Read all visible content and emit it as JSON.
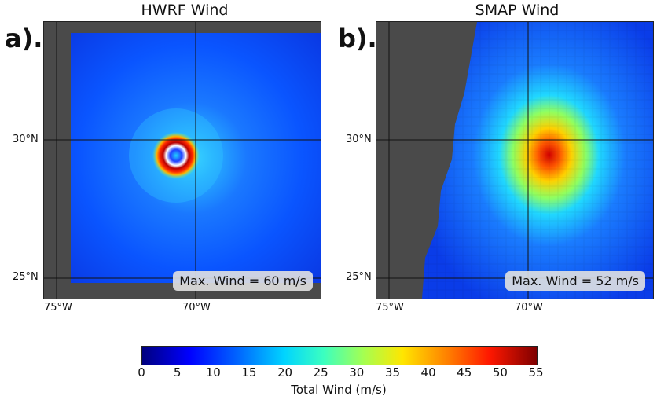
{
  "panels": [
    {
      "letter": "a).",
      "title": "HWRF Wind",
      "max_wind": "Max. Wind = 60 m/s",
      "lat_ticks": [
        "30°N",
        "25°N"
      ],
      "lon_ticks": [
        "75°W",
        "70°W"
      ]
    },
    {
      "letter": "b).",
      "title": "SMAP Wind",
      "max_wind": "Max. Wind = 52 m/s",
      "lat_ticks": [
        "30°N",
        "25°N"
      ],
      "lon_ticks": [
        "75°W",
        "70°W"
      ]
    }
  ],
  "colorbar": {
    "label": "Total Wind (m/s)",
    "ticks": [
      "0",
      "5",
      "10",
      "15",
      "20",
      "25",
      "30",
      "35",
      "40",
      "45",
      "50",
      "55"
    ],
    "min": 0,
    "max": 55
  },
  "colors": {
    "land_mask": "#4a4a4a",
    "background_field": "#0a4cff"
  }
}
